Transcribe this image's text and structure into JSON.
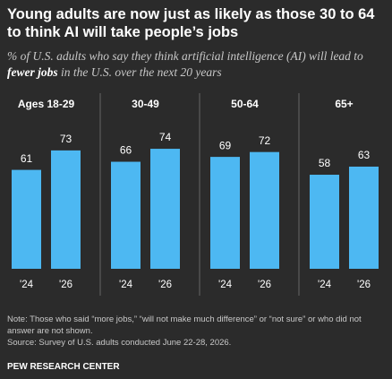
{
  "title": "Young adults are now just as likely as those 30 to 64 to think AI will take people’s jobs",
  "subtitle": [
    "% of U.S. adults who say they think artificial intelligence (AI) will lead to ",
    "fewer jobs",
    " in the U.S. over the next 20 years"
  ],
  "note": "Note: Those who said “more jobs,” “will not make much difference” or “not sure” or who did not answer are not shown.",
  "source": "Source: Survey of U.S. adults conducted June 22-28, 2026.",
  "credit": "PEW RESEARCH CENTER",
  "chart_data": [
    {
      "type": "bar",
      "title": "Ages 18-29",
      "categories": [
        "'24",
        "'26"
      ],
      "values": [
        61,
        73
      ],
      "color": "#4db8f2",
      "ylim": [
        0,
        100
      ]
    },
    {
      "type": "bar",
      "title": "30-49",
      "categories": [
        "'24",
        "'26"
      ],
      "values": [
        66,
        74
      ],
      "color": "#4db8f2",
      "ylim": [
        0,
        100
      ]
    },
    {
      "type": "bar",
      "title": "50-64",
      "categories": [
        "'24",
        "'26"
      ],
      "values": [
        69,
        72
      ],
      "color": "#4db8f2",
      "ylim": [
        0,
        100
      ]
    },
    {
      "type": "bar",
      "title": "65+",
      "categories": [
        "'24",
        "'26"
      ],
      "values": [
        58,
        63
      ],
      "color": "#4db8f2",
      "ylim": [
        0,
        100
      ]
    }
  ]
}
